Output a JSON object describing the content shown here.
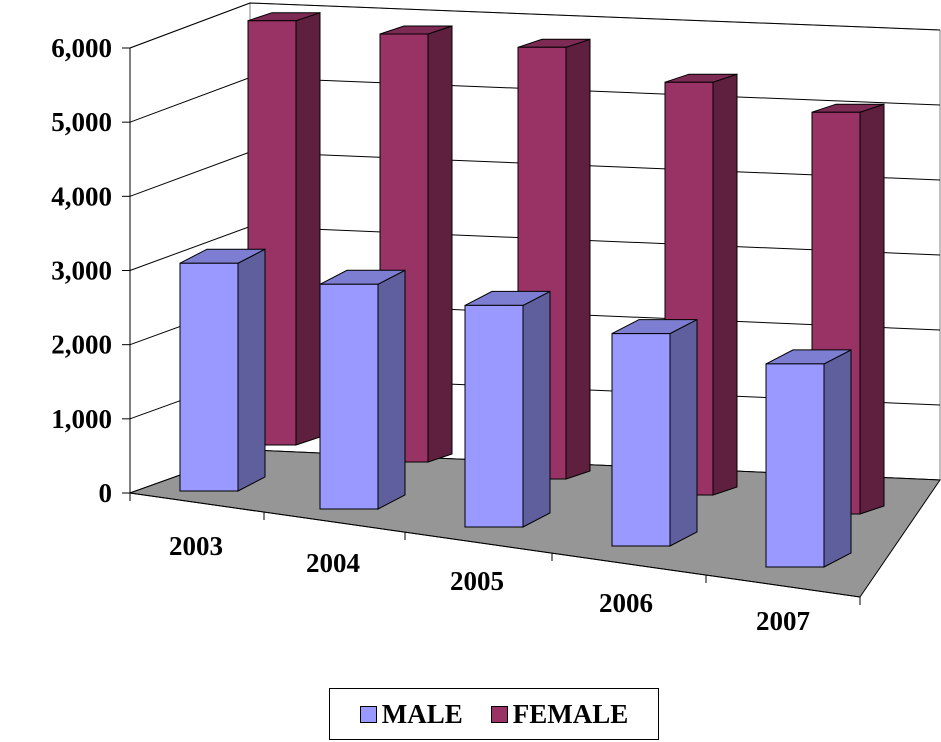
{
  "chart_data": {
    "type": "bar",
    "style": "3d-clustered-column",
    "categories": [
      "2003",
      "2004",
      "2005",
      "2006",
      "2007"
    ],
    "series": [
      {
        "name": "MALE",
        "values": [
          3700,
          3650,
          3600,
          3450,
          3300
        ],
        "color": "#9999ff"
      },
      {
        "name": "FEMALE",
        "values": [
          5750,
          5800,
          5850,
          5650,
          5500
        ],
        "color": "#993366"
      }
    ],
    "ylim": [
      0,
      6000
    ],
    "yticks": [
      "0",
      "1,000",
      "2,000",
      "3,000",
      "4,000",
      "5,000",
      "6,000"
    ],
    "grid": true,
    "legend": "bottom",
    "floor_color": "#969696"
  }
}
